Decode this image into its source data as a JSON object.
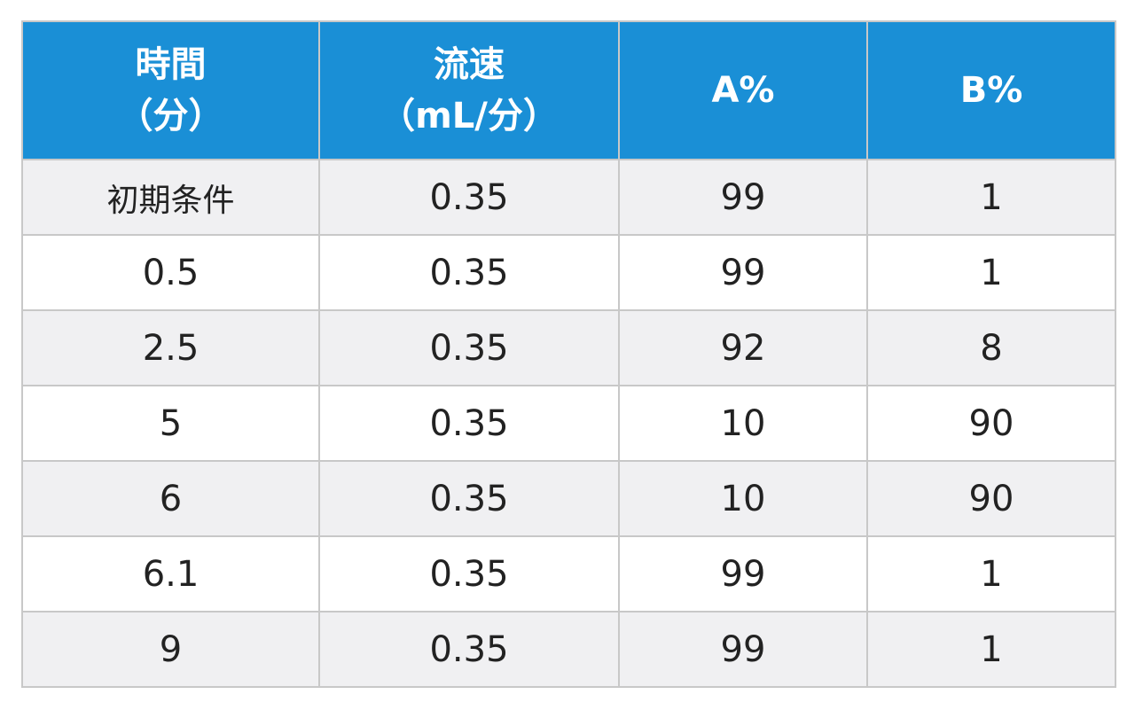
{
  "table": {
    "headers": [
      [
        "時間",
        "（分）"
      ],
      [
        "流速",
        "（mL/分）"
      ],
      [
        "A%"
      ],
      [
        "B%"
      ]
    ],
    "rows": [
      [
        "初期条件",
        "0.35",
        "99",
        "1"
      ],
      [
        "0.5",
        "0.35",
        "99",
        "1"
      ],
      [
        "2.5",
        "0.35",
        "92",
        "8"
      ],
      [
        "5",
        "0.35",
        "10",
        "90"
      ],
      [
        "6",
        "0.35",
        "10",
        "90"
      ],
      [
        "6.1",
        "0.35",
        "99",
        "1"
      ],
      [
        "9",
        "0.35",
        "99",
        "1"
      ]
    ],
    "colors": {
      "header_bg": "#1a8fd6",
      "header_text": "#ffffff",
      "stripe_bg": "#f0f0f2",
      "border": "#c8c8c8"
    }
  }
}
